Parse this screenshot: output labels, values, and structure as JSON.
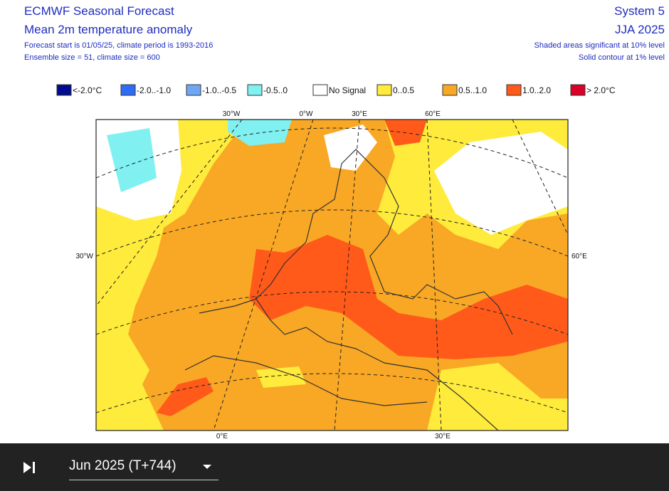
{
  "header": {
    "title": "ECMWF Seasonal Forecast",
    "subtitle": "Mean 2m temperature anomaly",
    "forecast_note": "Forecast start is 01/05/25, climate period is 1993-2016",
    "ensemble_note": "Ensemble size = 51, climate size = 600",
    "system": "System 5",
    "period": "JJA 2025",
    "shading_note": "Shaded areas significant at 10% level",
    "contour_note": "Solid contour at 1% level"
  },
  "legend": {
    "items": [
      {
        "label": "<-2.0°C",
        "color": "#000c8c"
      },
      {
        "label": "-2.0..-1.0",
        "color": "#2f6cf5"
      },
      {
        "label": "-1.0..-0.5",
        "color": "#6fa7f5"
      },
      {
        "label": "-0.5..0",
        "color": "#80f0f0"
      },
      {
        "label": "No Signal",
        "color": "#ffffff"
      },
      {
        "label": "0..0.5",
        "color": "#ffeb3b"
      },
      {
        "label": "0.5..1.0",
        "color": "#f9a825"
      },
      {
        "label": "1.0..2.0",
        "color": "#ff5a1a"
      },
      {
        "label": "> 2.0°C",
        "color": "#d9002a"
      }
    ]
  },
  "map": {
    "top_labels": [
      "30°W",
      "0°W",
      "30°E",
      "60°E"
    ],
    "left_label": "30°W",
    "right_label": "60°E",
    "bottom_labels": [
      "0°E",
      "30°E"
    ]
  },
  "footer": {
    "time_select": "Jun 2025 (T+744)"
  }
}
